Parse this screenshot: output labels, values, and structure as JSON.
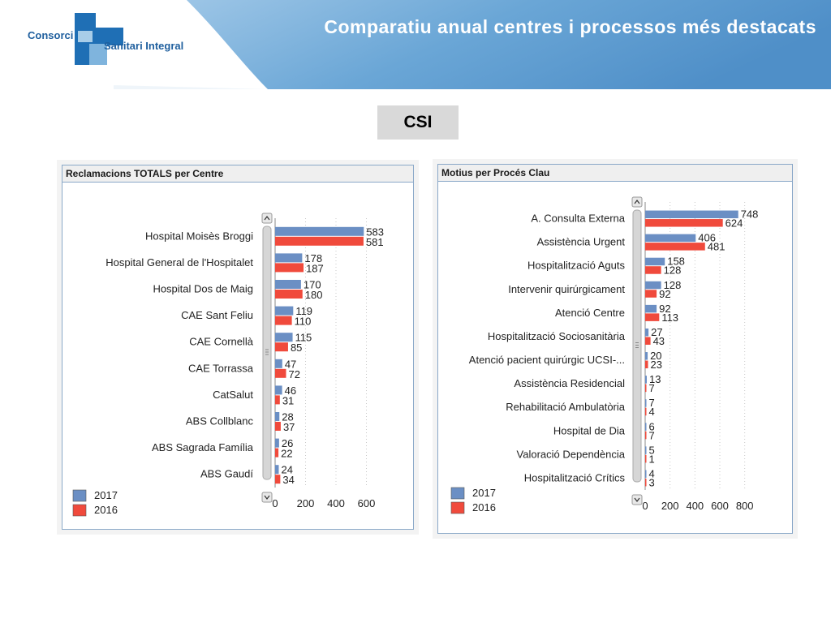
{
  "header": {
    "title": "Comparatiu anual centres i processos més destacats",
    "logo_line1": "Consorci",
    "logo_line2": "Sanitari Integral"
  },
  "badge": "CSI",
  "colors": {
    "series_2017": "#6b8fc4",
    "series_2016": "#f04a3c",
    "banner": "#5b9bd0"
  },
  "chart_data": [
    {
      "type": "bar",
      "orientation": "horizontal",
      "title": "Reclamacions TOTALS per Centre",
      "categories": [
        "Hospital Moisès Broggi",
        "Hospital General de l'Hospitalet",
        "Hospital Dos de Maig",
        "CAE Sant Feliu",
        "CAE Cornellà",
        "CAE Torrassa",
        "CatSalut",
        "ABS Collblanc",
        "ABS Sagrada Família",
        "ABS Gaudí"
      ],
      "series": [
        {
          "name": "2017",
          "values": [
            583,
            178,
            170,
            119,
            115,
            47,
            46,
            28,
            26,
            24
          ]
        },
        {
          "name": "2016",
          "values": [
            581,
            187,
            180,
            110,
            85,
            72,
            31,
            37,
            22,
            34
          ]
        }
      ],
      "xticks": [
        0,
        200,
        400,
        600
      ],
      "xlim": [
        0,
        640
      ],
      "grid": true,
      "legend": "bottom-left"
    },
    {
      "type": "bar",
      "orientation": "horizontal",
      "title": "Motius per Procés Clau",
      "categories": [
        "A. Consulta Externa",
        "Assistència Urgent",
        "Hospitalització Aguts",
        "Intervenir quirúrgicament",
        "Atenció Centre",
        "Hospitalització Sociosanitària",
        "Atenció pacient quirúrgic UCSI-...",
        "Assistència Residencial",
        "Rehabilitació Ambulatòria",
        "Hospital de Dia",
        "Valoració Dependència",
        "Hospitalització Crítics"
      ],
      "series": [
        {
          "name": "2017",
          "values": [
            748,
            406,
            158,
            128,
            92,
            27,
            20,
            13,
            7,
            6,
            5,
            4
          ]
        },
        {
          "name": "2016",
          "values": [
            624,
            481,
            128,
            92,
            113,
            43,
            23,
            7,
            4,
            7,
            1,
            3
          ]
        }
      ],
      "xticks": [
        0,
        200,
        400,
        600,
        800
      ],
      "xlim": [
        0,
        900
      ],
      "grid": true,
      "legend": "bottom-left"
    }
  ]
}
